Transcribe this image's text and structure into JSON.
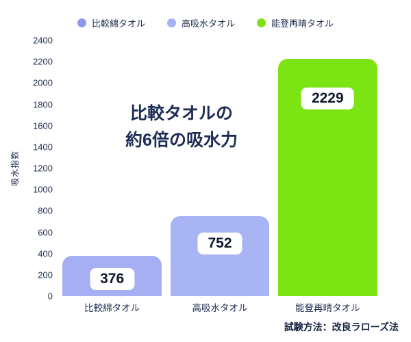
{
  "legend": {
    "items": [
      {
        "label": "比較綿タオル",
        "color": "#8f99e9"
      },
      {
        "label": "高吸水タオル",
        "color": "#a7b1f3"
      },
      {
        "label": "能登再晴タオル",
        "color": "#7de414"
      }
    ]
  },
  "chart_data": {
    "type": "bar",
    "categories": [
      "比較綿タオル",
      "高吸水タオル",
      "能登再晴タオル"
    ],
    "values": [
      376,
      752,
      2229
    ],
    "value_labels": [
      "376",
      "752",
      "2229"
    ],
    "bar_colors": [
      "#a6aff1",
      "#a9b4f4",
      "#7de414"
    ],
    "ylabel": "吸水指数",
    "ylim": [
      0,
      2400
    ],
    "ytick_step": 200,
    "grid": false,
    "legend_position": "top",
    "annotation_lines": [
      "比較タオルの",
      "約6倍の吸水力"
    ],
    "footnote": "試験方法：改良ラローズ法"
  }
}
